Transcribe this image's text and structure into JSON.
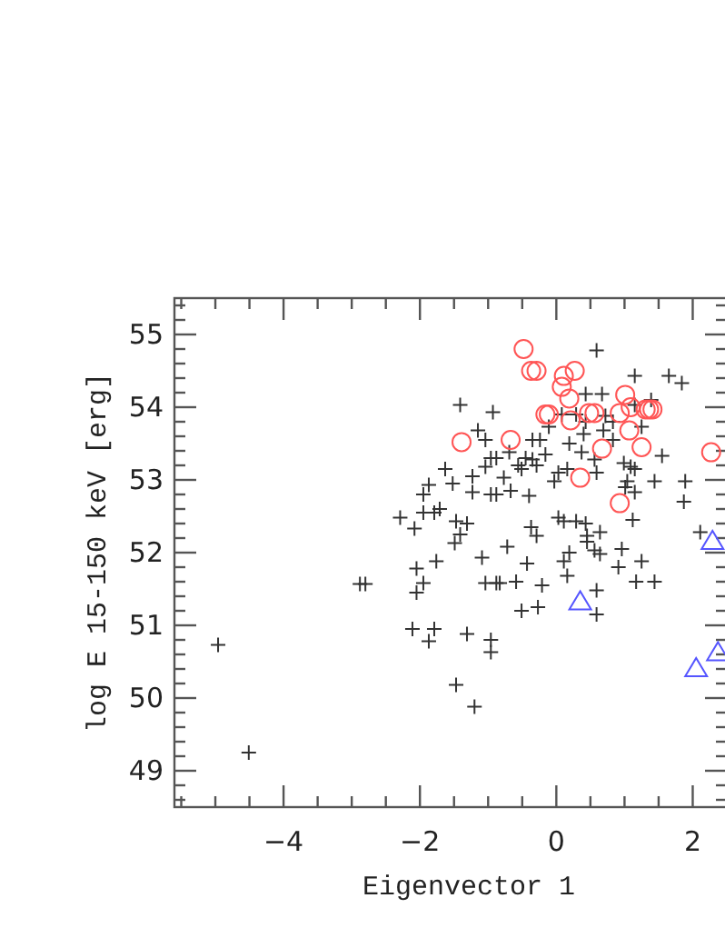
{
  "chart_data": {
    "type": "scatter",
    "xlabel": "Eigenvector 1",
    "ylabel": "log E 15-150 keV [erg]",
    "xlim": [
      -5.6,
      2.5
    ],
    "ylim": [
      48.5,
      55.5
    ],
    "xticks": [
      {
        "value": -5.5,
        "label": null
      },
      {
        "value": -5,
        "label": null
      },
      {
        "value": -4.5,
        "label": null
      },
      {
        "value": -4,
        "label": "−4"
      },
      {
        "value": -3.5,
        "label": null
      },
      {
        "value": -3,
        "label": null
      },
      {
        "value": -2.5,
        "label": null
      },
      {
        "value": -2,
        "label": "−2"
      },
      {
        "value": -1.5,
        "label": null
      },
      {
        "value": -1,
        "label": null
      },
      {
        "value": -0.5,
        "label": null
      },
      0,
      {
        "value": 0.5,
        "label": null
      },
      {
        "value": 1,
        "label": null
      },
      {
        "value": 1.5,
        "label": null
      },
      2
    ],
    "yticks": [
      {
        "value": 48.6,
        "label": null
      },
      {
        "value": 48.8,
        "label": null
      },
      49,
      {
        "value": 49.2,
        "label": null
      },
      {
        "value": 49.4,
        "label": null
      },
      {
        "value": 49.6,
        "label": null
      },
      {
        "value": 49.8,
        "label": null
      },
      50,
      {
        "value": 50.2,
        "label": null
      },
      {
        "value": 50.4,
        "label": null
      },
      {
        "value": 50.6,
        "label": null
      },
      {
        "value": 50.8,
        "label": null
      },
      51,
      {
        "value": 51.2,
        "label": null
      },
      {
        "value": 51.4,
        "label": null
      },
      {
        "value": 51.6,
        "label": null
      },
      {
        "value": 51.8,
        "label": null
      },
      52,
      {
        "value": 52.2,
        "label": null
      },
      {
        "value": 52.4,
        "label": null
      },
      {
        "value": 52.6,
        "label": null
      },
      {
        "value": 52.8,
        "label": null
      },
      53,
      {
        "value": 53.2,
        "label": null
      },
      {
        "value": 53.4,
        "label": null
      },
      {
        "value": 53.6,
        "label": null
      },
      {
        "value": 53.8,
        "label": null
      },
      54,
      {
        "value": 54.2,
        "label": null
      },
      {
        "value": 54.4,
        "label": null
      },
      {
        "value": 54.6,
        "label": null
      },
      {
        "value": 54.8,
        "label": null
      },
      55,
      {
        "value": 55.2,
        "label": null
      },
      {
        "value": 55.4,
        "label": null
      }
    ],
    "grid": false,
    "series": [
      {
        "color": "#333333",
        "marker": "cross",
        "x": [
          -1.41,
          -0.93,
          -1.15,
          -1.04,
          -0.96,
          -0.88,
          -1.04,
          -0.77,
          -1.63,
          -1.87,
          -1.52,
          -1.23,
          -1.23,
          -0.96,
          -0.88,
          -1.95,
          -1.71,
          -1.95,
          -1.79,
          -2.29,
          -2.08,
          -1.47,
          -1.31,
          -1.41,
          -1.49,
          -0.72,
          -1.09,
          -1.76,
          -2.05,
          -1.95,
          -2.05,
          -2.88,
          -2.8,
          -1.04,
          -0.88,
          -0.83,
          0.59,
          1.15,
          1.65,
          1.84,
          0.43,
          0.67,
          0.08,
          0.29,
          0.72,
          1.15,
          1.39,
          -0.11,
          0.43,
          0.83,
          0.4,
          0.69,
          1.25,
          0.83,
          -0.35,
          -0.24,
          -0.69,
          -0.45,
          -0.35,
          -0.16,
          0.19,
          0.37,
          0.56,
          0.99,
          1.55,
          -0.56,
          -0.51,
          -0.29,
          0.03,
          0.16,
          0.59,
          1.09,
          1.15,
          -0.67,
          -0.4,
          -0.03,
          1.04,
          1.01,
          1.15,
          1.44,
          1.89,
          1.87,
          1.12,
          0.03,
          0.11,
          -0.29,
          -0.37,
          0.29,
          0.43,
          0.45,
          0.45,
          0.64,
          0.96,
          0.56,
          0.64,
          0.19,
          -0.43,
          0.11,
          1.25,
          0.91,
          2.11,
          -0.59,
          -0.21,
          0.59,
          0.16,
          1.17,
          1.44,
          -0.51,
          -0.27,
          0.59,
          -2.11,
          -1.79,
          -1.87,
          -1.31,
          -0.96,
          -0.96,
          -1.47,
          -1.2,
          -4.96,
          -4.51
        ],
        "values": [
          54.03,
          53.93,
          53.68,
          53.55,
          53.3,
          53.3,
          53.18,
          53.03,
          53.15,
          52.93,
          52.95,
          53.05,
          52.83,
          52.8,
          52.8,
          52.8,
          52.6,
          52.55,
          52.55,
          52.48,
          52.33,
          52.43,
          52.4,
          52.25,
          52.13,
          52.08,
          51.93,
          51.88,
          51.78,
          51.58,
          51.45,
          51.57,
          51.57,
          51.58,
          51.58,
          51.58,
          54.78,
          54.43,
          54.43,
          54.33,
          54.18,
          54.18,
          53.9,
          53.9,
          53.88,
          54.03,
          54.1,
          53.73,
          53.8,
          53.8,
          53.63,
          53.68,
          53.73,
          53.55,
          53.55,
          53.55,
          53.38,
          53.3,
          53.28,
          53.35,
          53.5,
          53.38,
          53.28,
          53.23,
          53.33,
          53.2,
          53.15,
          53.2,
          53.1,
          53.15,
          53.1,
          53.18,
          53.15,
          52.85,
          52.78,
          52.98,
          52.98,
          52.9,
          52.83,
          52.98,
          52.98,
          52.7,
          52.45,
          52.48,
          52.43,
          52.23,
          52.35,
          52.43,
          52.4,
          52.23,
          52.15,
          52.28,
          52.05,
          52.03,
          51.98,
          52.0,
          51.85,
          51.88,
          51.88,
          51.8,
          52.28,
          51.6,
          51.55,
          51.48,
          51.68,
          51.6,
          51.6,
          51.2,
          51.25,
          51.15,
          50.95,
          50.95,
          50.78,
          50.88,
          50.8,
          50.63,
          50.18,
          49.88,
          50.73,
          49.25
        ]
      },
      {
        "color": "#ff5555",
        "marker": "circle",
        "x": [
          -0.48,
          -0.37,
          -0.29,
          0.11,
          0.27,
          0.08,
          0.19,
          -0.16,
          -0.11,
          0.21,
          0.48,
          0.56,
          0.93,
          1.01,
          1.09,
          1.31,
          1.36,
          1.41,
          1.07,
          0.67,
          1.25,
          -0.67,
          0.35,
          0.93,
          2.27,
          -1.39
        ],
        "values": [
          54.8,
          54.5,
          54.5,
          54.43,
          54.5,
          54.28,
          54.12,
          53.9,
          53.9,
          53.82,
          53.92,
          53.92,
          53.92,
          54.17,
          54.0,
          53.97,
          53.97,
          53.97,
          53.68,
          53.43,
          53.45,
          53.55,
          53.03,
          52.68,
          53.38,
          53.52
        ]
      },
      {
        "color": "#5555ff",
        "marker": "triangle",
        "x": [
          0.35,
          2.05,
          2.29,
          2.37
        ],
        "values": [
          51.32,
          50.4,
          52.15,
          50.62
        ]
      }
    ]
  }
}
